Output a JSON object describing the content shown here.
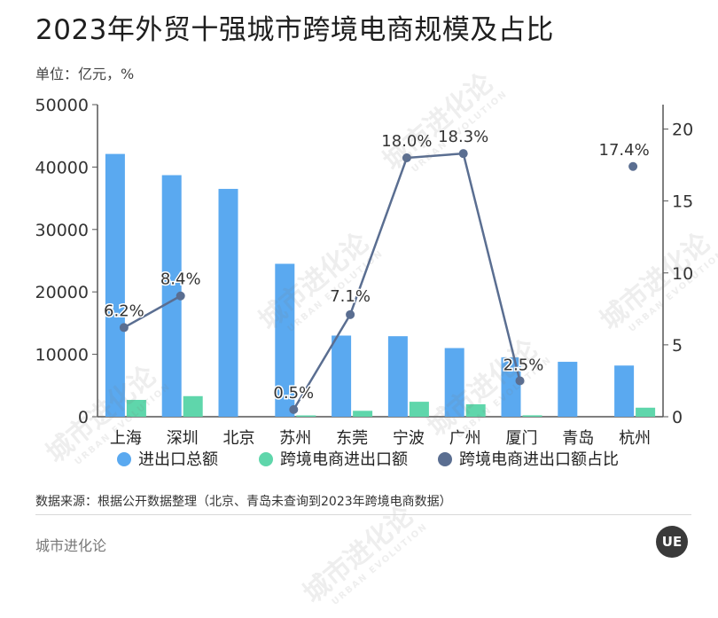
{
  "header": {
    "title": "2023年外贸十强城市跨境电商规模及占比",
    "unit": "单位：亿元，%"
  },
  "footer": {
    "source": "数据来源：根据公开数据整理（北京、青岛未查询到2023年跨境电商数据）",
    "brand": "城市进化论",
    "logo_text": "UE"
  },
  "watermark": {
    "text": "城市进化论",
    "sub": "URBAN EVOLUTION"
  },
  "chart_data": {
    "type": "bar",
    "categories": [
      "上海",
      "深圳",
      "北京",
      "苏州",
      "东莞",
      "宁波",
      "广州",
      "厦门",
      "青岛",
      "杭州"
    ],
    "series": [
      {
        "name": "进出口总额",
        "type": "bar",
        "axis": "left",
        "color": "#5aa9f0",
        "values": [
          42100,
          38700,
          36500,
          24500,
          13000,
          12900,
          11000,
          9500,
          8800,
          8200
        ]
      },
      {
        "name": "跨境电商进出口额",
        "type": "bar",
        "axis": "left",
        "color": "#5fd6ab",
        "values": [
          2700,
          3300,
          null,
          150,
          950,
          2400,
          2000,
          230,
          null,
          1450
        ]
      },
      {
        "name": "跨境电商进出口额占比",
        "type": "line",
        "axis": "right",
        "color": "#5a6e91",
        "values": [
          6.2,
          8.4,
          null,
          0.5,
          7.1,
          18.0,
          18.3,
          2.5,
          null,
          17.4
        ],
        "labels": [
          "6.2%",
          "8.4%",
          null,
          "0.5%",
          "7.1%",
          "18.0%",
          "18.3%",
          "2.5%",
          null,
          "17.4%"
        ]
      }
    ],
    "y_left": {
      "min": 0,
      "max": 50000,
      "ticks": [
        0,
        10000,
        20000,
        30000,
        40000,
        50000
      ]
    },
    "y_right": {
      "min": 0,
      "max": 21.7,
      "ticks": [
        0,
        5,
        10,
        15,
        20
      ]
    },
    "legend_position": "bottom",
    "title": "2023年外贸十强城市跨境电商规模及占比"
  }
}
